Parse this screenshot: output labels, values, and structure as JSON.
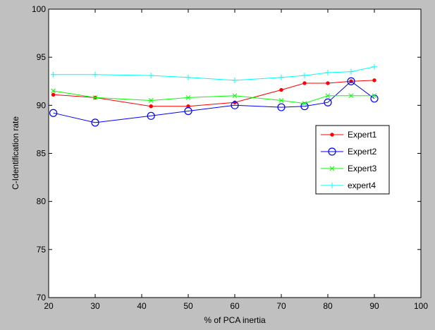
{
  "chart_data": {
    "type": "line",
    "title": "",
    "xlabel": "% of PCA inertia",
    "ylabel": "C-Identification rate",
    "xlim": [
      20,
      100
    ],
    "ylim": [
      70,
      100
    ],
    "xticks": [
      20,
      30,
      40,
      50,
      60,
      70,
      80,
      90,
      100
    ],
    "yticks": [
      70,
      75,
      80,
      85,
      90,
      95,
      100
    ],
    "grid": false,
    "legend_position": "right",
    "series": [
      {
        "name": "Expert1",
        "color": "#ff0000",
        "marker": "dot",
        "x": [
          21,
          30,
          42,
          50,
          60,
          70,
          75,
          80,
          85,
          90
        ],
        "y": [
          91.1,
          90.8,
          89.9,
          89.9,
          90.3,
          91.6,
          92.3,
          92.3,
          92.5,
          92.6
        ]
      },
      {
        "name": "Expert2",
        "color": "#0000ff",
        "marker": "circle",
        "x": [
          21,
          30,
          42,
          50,
          60,
          70,
          75,
          80,
          85,
          90
        ],
        "y": [
          89.2,
          88.2,
          88.9,
          89.4,
          90.0,
          89.8,
          89.9,
          90.3,
          92.5,
          90.7
        ]
      },
      {
        "name": "Expert3",
        "color": "#00ff00",
        "marker": "x",
        "x": [
          21,
          30,
          42,
          50,
          60,
          70,
          75,
          80,
          85,
          90
        ],
        "y": [
          91.5,
          90.8,
          90.5,
          90.8,
          91.0,
          90.5,
          90.2,
          91.0,
          91.0,
          91.0
        ]
      },
      {
        "name": "expert4",
        "color": "#00ffff",
        "marker": "plus",
        "x": [
          21,
          30,
          42,
          50,
          60,
          70,
          75,
          80,
          85,
          90
        ],
        "y": [
          93.2,
          93.2,
          93.1,
          92.9,
          92.6,
          92.9,
          93.1,
          93.4,
          93.5,
          94.0
        ]
      }
    ]
  }
}
